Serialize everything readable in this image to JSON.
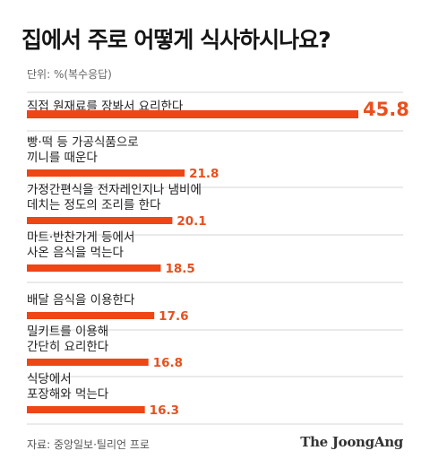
{
  "title": "집에서 주로 어떻게 식사하시나요?",
  "unit_label": "단위: %(복수응답)",
  "source": "자료: 중앙일보·틸리언 프로",
  "brand": "The JoongAng",
  "colors": {
    "bar": "#ee4614",
    "value_text": "#e8501e",
    "divider": "#d4d4d4",
    "label_text": "#222222"
  },
  "chart_data": {
    "type": "bar",
    "orientation": "horizontal",
    "title": "집에서 주로 어떻게 식사하시나요?",
    "unit": "%",
    "categories": [
      [
        "직접 원재료를 장봐서 요리한다"
      ],
      [
        "빵·떡 등 가공식품으로",
        "끼니를 때운다"
      ],
      [
        "가정간편식을 전자레인지나 냄비에",
        "데치는 정도의 조리를 한다"
      ],
      [
        "마트·반찬가게 등에서",
        "사온 음식을 먹는다"
      ],
      [
        "배달 음식을 이용한다"
      ],
      [
        "밀키트를 이용해",
        "간단히 요리한다"
      ],
      [
        "식당에서",
        "포장해와 먹는다"
      ]
    ],
    "values": [
      45.8,
      21.8,
      20.1,
      18.5,
      17.6,
      16.8,
      16.3
    ],
    "xlim": [
      0,
      45.8
    ],
    "grid": false,
    "legend": "none"
  }
}
